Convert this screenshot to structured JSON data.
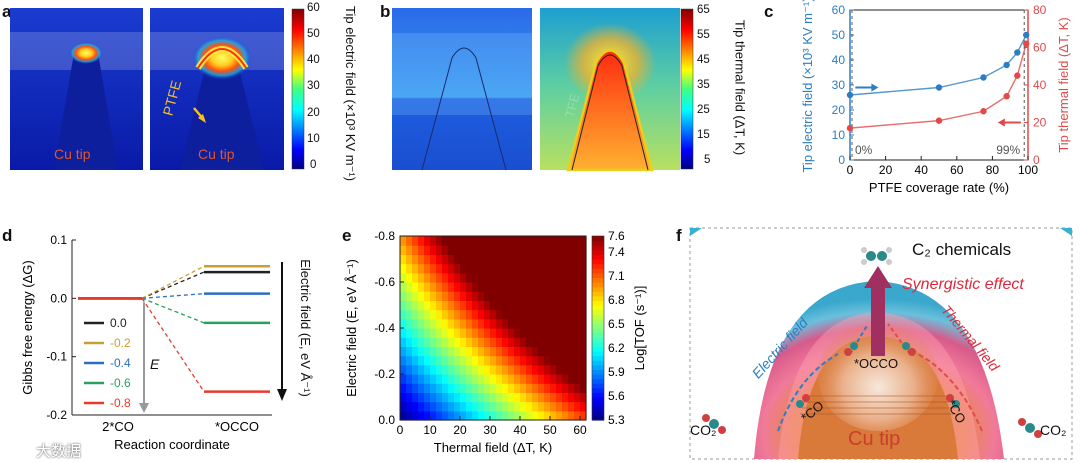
{
  "panels": {
    "a": {
      "label": "a",
      "left_text": "Cu tip",
      "right_text": "Cu tip",
      "ptfe": "PTFE",
      "colorbar": {
        "ticks": [
          "60",
          "50",
          "40",
          "30",
          "20",
          "10",
          "0"
        ],
        "title": "Tip electric field (×10³ KV m⁻¹)"
      }
    },
    "b": {
      "label": "b",
      "tfe": "TFE",
      "colorbar": {
        "ticks": [
          "65",
          "55",
          "45",
          "35",
          "25",
          "15",
          "5"
        ],
        "title": "Tip thermal field (ΔT, K)"
      }
    },
    "c": {
      "label": "c",
      "ann_left": "0%",
      "ann_right": "99%"
    },
    "d": {
      "label": "d",
      "legend": [
        "0.0",
        "-0.2",
        "-0.4",
        "-0.6",
        "-0.8"
      ],
      "e_label": "E",
      "right_axis": "Electric field (E, eV Å⁻¹)"
    },
    "e": {
      "label": "e"
    },
    "f": {
      "label": "f",
      "c2": "C₂ chemicals",
      "synergy": "Synergistic effect",
      "electric": "Electric field",
      "thermal": "Thermal field",
      "occo": "*OCCO",
      "co1": "*CO",
      "co2": "*CO",
      "co2_left": "CO₂",
      "co2_right": "CO₂",
      "cu_tip": "Cu tip"
    }
  },
  "watermark": "大数据",
  "chart_data": [
    {
      "type": "line",
      "panel": "c",
      "xlabel": "PTFE coverage rate (%)",
      "ylabel": "Tip electric field (×10³ KV m⁻¹)",
      "y2label": "Tip thermal field (ΔT, K)",
      "xlim": [
        0,
        100
      ],
      "ylim": [
        0,
        60
      ],
      "y2lim": [
        0,
        80
      ],
      "xticks": [
        0,
        20,
        40,
        60,
        80,
        100
      ],
      "yticks": [
        0,
        10,
        20,
        30,
        40,
        50,
        60
      ],
      "y2ticks": [
        0,
        20,
        40,
        60,
        80
      ],
      "series": [
        {
          "name": "Tip electric field",
          "axis": "left",
          "color": "#2d7dc4",
          "x": [
            0,
            50,
            75,
            88,
            94,
            99
          ],
          "values": [
            26,
            29,
            33,
            38,
            43,
            50
          ]
        },
        {
          "name": "Tip thermal field",
          "axis": "right",
          "color": "#e24a4a",
          "x": [
            0,
            50,
            75,
            88,
            94,
            99
          ],
          "values": [
            17,
            21,
            26,
            34,
            45,
            62
          ]
        }
      ]
    },
    {
      "type": "line",
      "panel": "d",
      "xlabel": "Reaction coordinate",
      "ylabel": "Gibbs free energy (ΔG)",
      "categories": [
        "2*CO",
        "*OCCO"
      ],
      "ylim": [
        -0.2,
        0.1
      ],
      "yticks": [
        0.1,
        0.0,
        -0.1,
        -0.2
      ],
      "series": [
        {
          "name": "0.0",
          "color": "#222222",
          "values": [
            0.0,
            0.045
          ]
        },
        {
          "name": "-0.2",
          "color": "#c8a030",
          "values": [
            0.0,
            0.055
          ]
        },
        {
          "name": "-0.4",
          "color": "#2a6fc0",
          "values": [
            0.0,
            0.008
          ]
        },
        {
          "name": "-0.6",
          "color": "#2aa060",
          "values": [
            0.0,
            -0.042
          ]
        },
        {
          "name": "-0.8",
          "color": "#e83a2a",
          "values": [
            0.0,
            -0.16
          ]
        }
      ]
    },
    {
      "type": "heatmap",
      "panel": "e",
      "xlabel": "Thermal field (ΔT, K)",
      "ylabel": "Electric field (E, eV Å⁻¹)",
      "xlim": [
        0,
        62
      ],
      "ylim": [
        0,
        -0.8
      ],
      "xticks": [
        0,
        10,
        20,
        30,
        40,
        50,
        60
      ],
      "yticks": [
        -0.8,
        -0.6,
        -0.4,
        -0.2,
        0.0
      ],
      "colorbar_label": "Log[TOF (s⁻¹)]",
      "colorbar_ticks": [
        7.6,
        7.4,
        7.1,
        6.8,
        6.5,
        6.2,
        5.9,
        5.6,
        5.3
      ],
      "zlim": [
        5.3,
        7.6
      ]
    }
  ]
}
